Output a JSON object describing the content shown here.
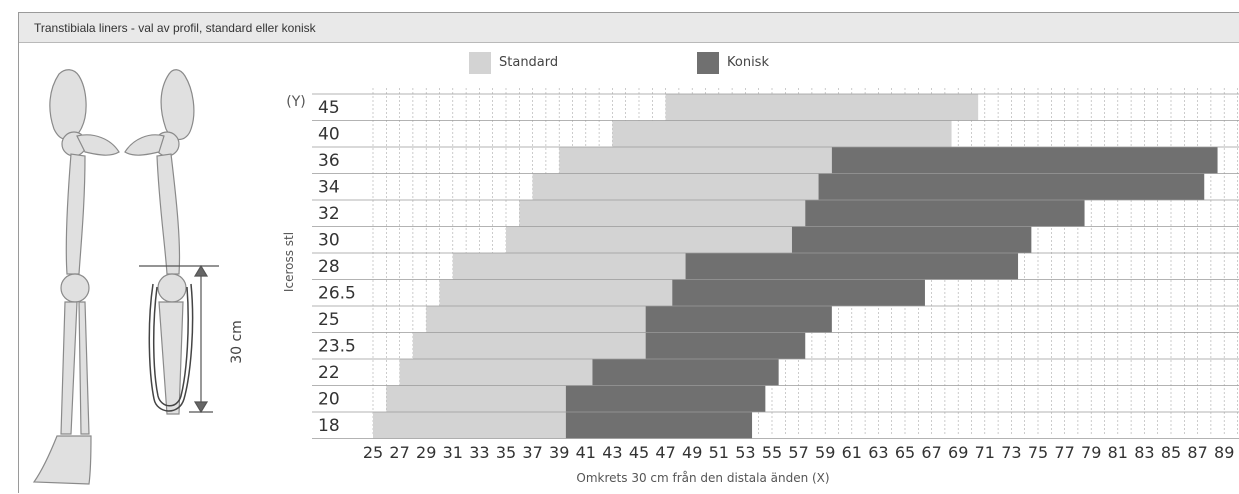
{
  "title": "Transtibiala liners - val av profil, standard eller konisk",
  "illustration": {
    "measure_label": "30 cm"
  },
  "colors": {
    "standard": "#d3d3d3",
    "konisk": "#707070",
    "grid": "#aaaaaa"
  },
  "chart_data": {
    "type": "bar",
    "orientation": "horizontal",
    "stacked_ranges": true,
    "y_axis_marker": "(Y)",
    "ylabel": "Iceross stl",
    "xlabel": "Omkrets 30 cm från den distala änden  (X)",
    "xlim": [
      25,
      89
    ],
    "x_ticks": [
      25,
      27,
      29,
      31,
      33,
      35,
      37,
      39,
      41,
      43,
      45,
      47,
      49,
      51,
      53,
      55,
      57,
      59,
      61,
      63,
      65,
      67,
      69,
      71,
      73,
      75,
      77,
      79,
      81,
      83,
      85,
      87,
      89
    ],
    "categories": [
      "45",
      "40",
      "36",
      "34",
      "32",
      "30",
      "28",
      "26.5",
      "25",
      "23.5",
      "22",
      "20",
      "18"
    ],
    "legend": [
      {
        "name": "Standard",
        "color": "#d3d3d3"
      },
      {
        "name": "Konisk",
        "color": "#707070"
      }
    ],
    "series": [
      {
        "name": "Standard",
        "ranges": [
          [
            47.0,
            70.5
          ],
          [
            43.0,
            68.5
          ],
          [
            39.0,
            59.5
          ],
          [
            37.0,
            58.5
          ],
          [
            36.0,
            57.5
          ],
          [
            35.0,
            56.5
          ],
          [
            31.0,
            48.5
          ],
          [
            30.0,
            47.5
          ],
          [
            29.0,
            45.5
          ],
          [
            28.0,
            45.5
          ],
          [
            27.0,
            41.5
          ],
          [
            26.0,
            39.5
          ],
          [
            25.0,
            39.5
          ]
        ]
      },
      {
        "name": "Konisk",
        "ranges": [
          null,
          null,
          [
            59.5,
            88.5
          ],
          [
            58.5,
            87.5
          ],
          [
            57.5,
            78.5
          ],
          [
            56.5,
            74.5
          ],
          [
            48.5,
            73.5
          ],
          [
            47.5,
            66.5
          ],
          [
            45.5,
            59.5
          ],
          [
            45.5,
            57.5
          ],
          [
            41.5,
            55.5
          ],
          [
            39.5,
            54.5
          ],
          [
            39.5,
            53.5
          ]
        ]
      }
    ]
  }
}
